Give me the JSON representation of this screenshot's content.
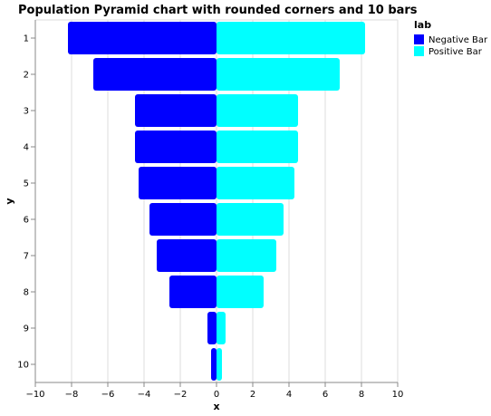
{
  "chart_data": {
    "type": "bar",
    "orientation": "horizontal",
    "title": "Population Pyramid chart with rounded corners and 10 bars",
    "xlabel": "x",
    "ylabel": "y",
    "xlim": [
      -10,
      10
    ],
    "x_ticks": [
      -10,
      -8,
      -6,
      -4,
      -2,
      0,
      2,
      4,
      6,
      8,
      10
    ],
    "x_tick_labels": [
      "−10",
      "−8",
      "−6",
      "−4",
      "−2",
      "0",
      "2",
      "4",
      "6",
      "8",
      "10"
    ],
    "categories": [
      "1",
      "2",
      "3",
      "4",
      "5",
      "6",
      "7",
      "8",
      "9",
      "10"
    ],
    "series": [
      {
        "name": "Negative Bar",
        "color": "#0000ff",
        "values": [
          -8.2,
          -6.8,
          -4.5,
          -4.5,
          -4.3,
          -3.7,
          -3.3,
          -2.6,
          -0.5,
          -0.3
        ]
      },
      {
        "name": "Positive Bar",
        "color": "#00ffff",
        "values": [
          8.2,
          6.8,
          4.5,
          4.5,
          4.3,
          3.7,
          3.3,
          2.6,
          0.5,
          0.3
        ]
      }
    ],
    "legend": {
      "title": "lab",
      "position": "top-right"
    },
    "grid": true
  }
}
